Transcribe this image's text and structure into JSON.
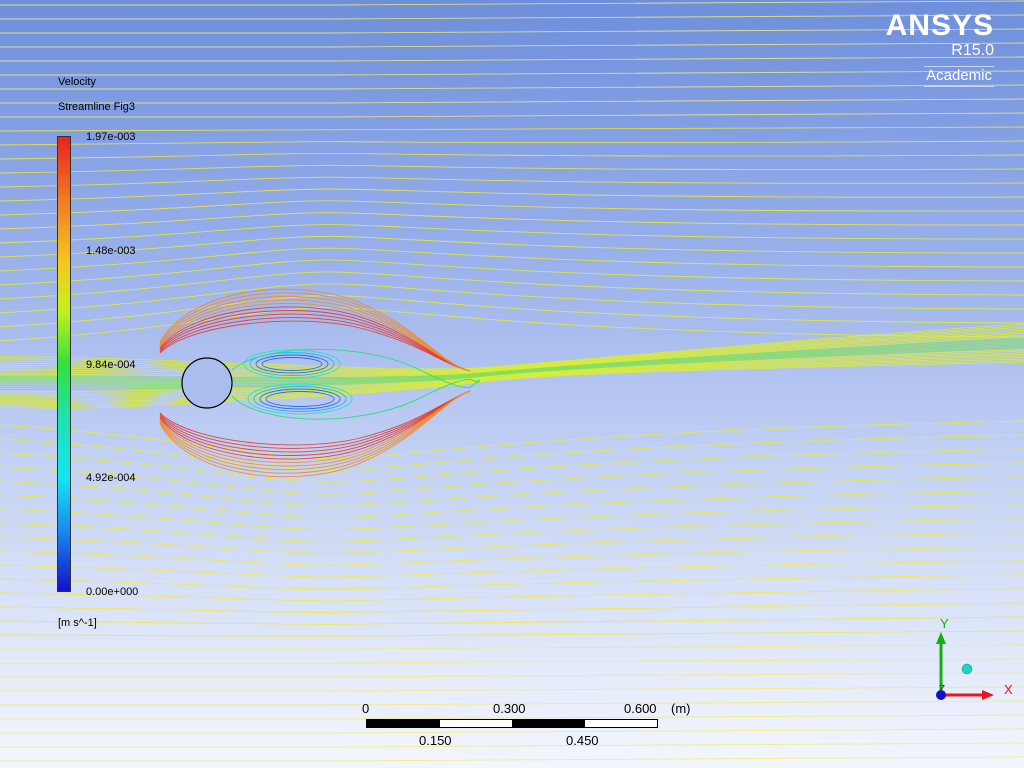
{
  "legend": {
    "title": "Velocity",
    "subtitle": "Streamline Fig3",
    "ticks": [
      "1.97e-003",
      "1.48e-003",
      "9.84e-004",
      "4.92e-004",
      "0.00e+000"
    ],
    "unit": "[m s^-1]",
    "colormap": [
      "#e8231e",
      "#f07c22",
      "#f4c81f",
      "#34e03a",
      "#13e6f3",
      "#1a8ff0",
      "#1510cc"
    ]
  },
  "logo": {
    "brand": "ANSYS",
    "version": "R15.0",
    "edition": "Academic"
  },
  "scale_bar": {
    "labels_top": [
      "0",
      "0.300",
      "0.600"
    ],
    "labels_bottom": [
      "0.150",
      "0.450"
    ],
    "unit": "(m)"
  },
  "triad": {
    "x_label": "X",
    "y_label": "Y",
    "z_label": "Z",
    "colors": {
      "x": "#e8141e",
      "y": "#10b010",
      "z": "#1010cc"
    }
  }
}
